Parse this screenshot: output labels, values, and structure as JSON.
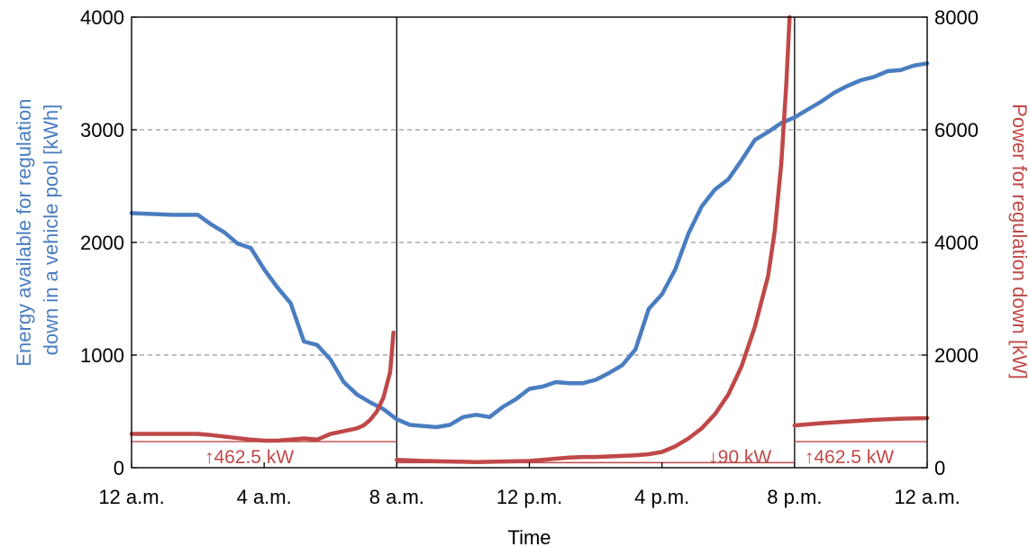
{
  "chart_data": {
    "type": "line",
    "xlabel": "Time",
    "ylabel_left": [
      "Energy available for regulation",
      "down in a vehicle pool [kWh]"
    ],
    "ylabel_right": "Power for regulation down [kW]",
    "x_ticks": [
      "12 a.m.",
      "4 a.m.",
      "8 a.m.",
      "12 p.m.",
      "4 p.m.",
      "8 p.m.",
      "12 a.m."
    ],
    "x_range_hours": [
      0,
      24
    ],
    "ylim_left": [
      0,
      4000
    ],
    "ylim_right": [
      0,
      8000
    ],
    "y_ticks_left": [
      "0",
      "1000",
      "2000",
      "3000",
      "4000"
    ],
    "y_ticks_right": [
      "0",
      "2000",
      "4000",
      "6000",
      "8000"
    ],
    "grid": "horizontal dashed",
    "colors": {
      "energy": "#4a7dc0",
      "power": "#c04848",
      "axis": "#000000",
      "grid": "#999999"
    },
    "period_boundaries_hours": [
      8,
      20
    ],
    "thresholds": [
      {
        "label": "↑462.5 kW",
        "value_kw": 462.5,
        "x_start": 0,
        "x_end": 8,
        "label_x": 2.2
      },
      {
        "label": "↓90 kW",
        "value_kw": 90,
        "x_start": 8,
        "x_end": 20,
        "label_x": 17.4
      },
      {
        "label": "↑462.5 kW",
        "value_kw": 462.5,
        "x_start": 20,
        "x_end": 24,
        "label_x": 20.3
      }
    ],
    "series": [
      {
        "axis": "left",
        "unit": "kWh",
        "color": "#4a7dc0",
        "x": [
          0,
          0.8,
          1.2,
          1.6,
          2,
          2.4,
          2.8,
          3.2,
          3.6,
          4,
          4.4,
          4.8,
          5.2,
          5.6,
          6,
          6.4,
          6.8,
          7.2,
          7.6,
          8,
          8.4,
          8.8,
          9.2,
          9.6,
          10,
          10.4,
          10.8,
          11.2,
          11.6,
          12,
          12.4,
          12.8,
          13.2,
          13.6,
          14,
          14.4,
          14.8,
          15.2,
          15.6,
          16,
          16.4,
          16.8,
          17.2,
          17.6,
          18,
          18.4,
          18.8,
          19.2,
          19.6,
          20,
          20.4,
          20.8,
          21.2,
          21.6,
          22,
          22.4,
          22.8,
          23.2,
          23.6,
          24
        ],
        "values": [
          2260,
          2250,
          2245,
          2245,
          2245,
          2160,
          2090,
          1990,
          1950,
          1760,
          1600,
          1460,
          1120,
          1090,
          960,
          760,
          650,
          580,
          520,
          430,
          380,
          370,
          360,
          380,
          450,
          470,
          450,
          540,
          610,
          700,
          720,
          760,
          750,
          750,
          780,
          840,
          910,
          1050,
          1410,
          1540,
          1760,
          2080,
          2320,
          2470,
          2560,
          2730,
          2910,
          2980,
          3060,
          3110,
          3180,
          3250,
          3330,
          3390,
          3440,
          3470,
          3520,
          3530,
          3570,
          3590
        ]
      },
      {
        "axis": "right",
        "unit": "kW",
        "color": "#c04848",
        "segments": [
          {
            "x": [
              0,
              1,
              2,
              2.4,
              3,
              3.6,
              4,
              4.4,
              4.8,
              5.2,
              5.6,
              6,
              6.4,
              6.8,
              7,
              7.2,
              7.4,
              7.6,
              7.8,
              7.9
            ],
            "values": [
              600,
              600,
              600,
              580,
              540,
              500,
              480,
              480,
              500,
              520,
              500,
              600,
              650,
              700,
              750,
              850,
              1000,
              1250,
              1700,
              2400
            ]
          },
          {
            "x": [
              8,
              8.8,
              9.6,
              10.4,
              11.2,
              12,
              12.4,
              12.8,
              13.2,
              13.6,
              14,
              14.4,
              14.8,
              15.2,
              15.6,
              16,
              16.4,
              16.8,
              17.2,
              17.6,
              18,
              18.4,
              18.8,
              19.2,
              19.4,
              19.6,
              19.75,
              19.85
            ],
            "values": [
              140,
              120,
              110,
              100,
              110,
              120,
              140,
              160,
              180,
              190,
              190,
              200,
              210,
              220,
              240,
              280,
              380,
              520,
              700,
              950,
              1300,
              1800,
              2500,
              3400,
              4200,
              5400,
              6800,
              8000
            ]
          },
          {
            "x": [
              20,
              20.8,
              21.6,
              22.4,
              23.2,
              24
            ],
            "values": [
              750,
              790,
              820,
              850,
              870,
              880
            ]
          }
        ]
      }
    ]
  }
}
